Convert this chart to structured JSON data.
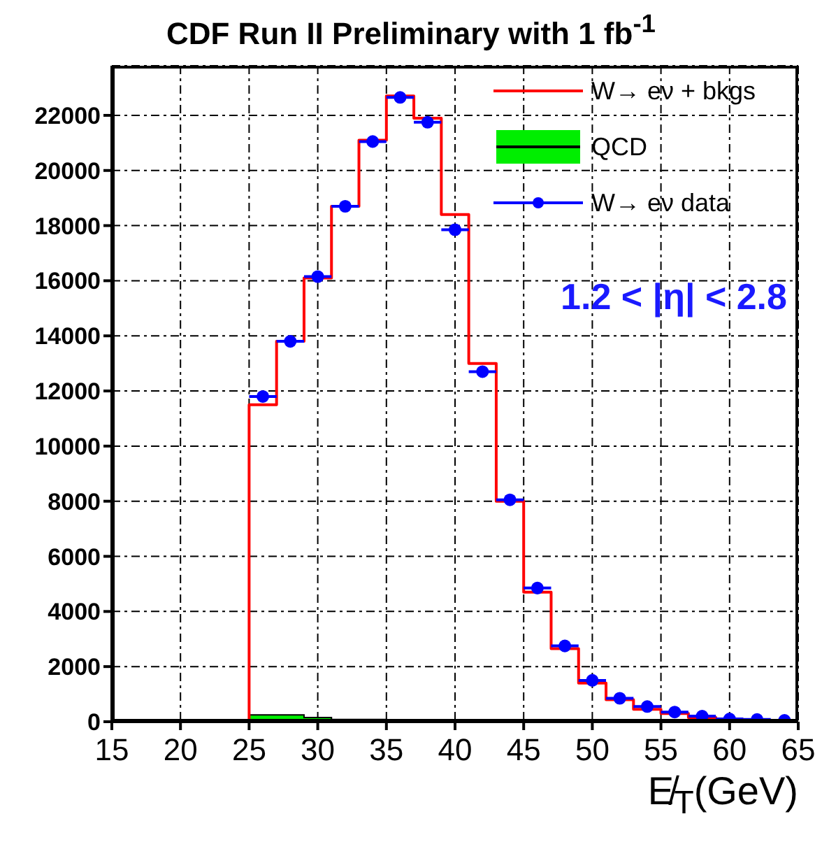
{
  "chart_data": {
    "type": "histogram",
    "title": "CDF Run II Preliminary with 1 fb$^{-1}$",
    "xlabel": "E̸$_{T}$(GeV)",
    "bins": [
      25,
      27,
      29,
      31,
      33,
      35,
      37,
      39,
      41,
      43,
      45,
      47,
      49,
      51,
      53,
      55,
      57,
      59,
      61,
      63,
      65
    ],
    "series": [
      {
        "name": "W→ eν + bkgs",
        "color": "#ff0000",
        "values": [
          11500,
          13800,
          16100,
          18700,
          21100,
          22700,
          21900,
          18400,
          13000,
          8000,
          4700,
          2650,
          1400,
          800,
          450,
          300,
          150,
          80,
          50,
          30
        ]
      },
      {
        "name": "QCD",
        "color": "#00ee00",
        "values": [
          250,
          250,
          150,
          80,
          80,
          0,
          0,
          0,
          0,
          0,
          0,
          0,
          0,
          0,
          0,
          0,
          0,
          0,
          0,
          0
        ]
      },
      {
        "name": "W→ eν data",
        "type": "scatter",
        "color": "#0000ff",
        "marker": "circle",
        "x": [
          26,
          28,
          30,
          32,
          34,
          36,
          38,
          40,
          42,
          44,
          46,
          48,
          50,
          52,
          54,
          56,
          58,
          60,
          62,
          64
        ],
        "values": [
          11800,
          13800,
          16150,
          18700,
          21050,
          22650,
          21750,
          17850,
          12700,
          8050,
          4850,
          2750,
          1500,
          850,
          550,
          350,
          200,
          100,
          80,
          50
        ],
        "xerrors": [
          1,
          1,
          1,
          1,
          1,
          1,
          1,
          1,
          1,
          1,
          1,
          1,
          1,
          1,
          1,
          1,
          1,
          1,
          1,
          1
        ]
      }
    ],
    "xlim": [
      15,
      65
    ],
    "xticks": [
      15,
      20,
      25,
      30,
      35,
      40,
      45,
      50,
      55,
      60,
      65
    ],
    "ylim": [
      0,
      23800
    ],
    "yticks": [
      0,
      2000,
      4000,
      6000,
      8000,
      10000,
      12000,
      14000,
      16000,
      18000,
      20000,
      22000
    ],
    "grid": true,
    "legend": "top right",
    "annotations": [
      "1.2 < |η| < 2.8"
    ]
  }
}
